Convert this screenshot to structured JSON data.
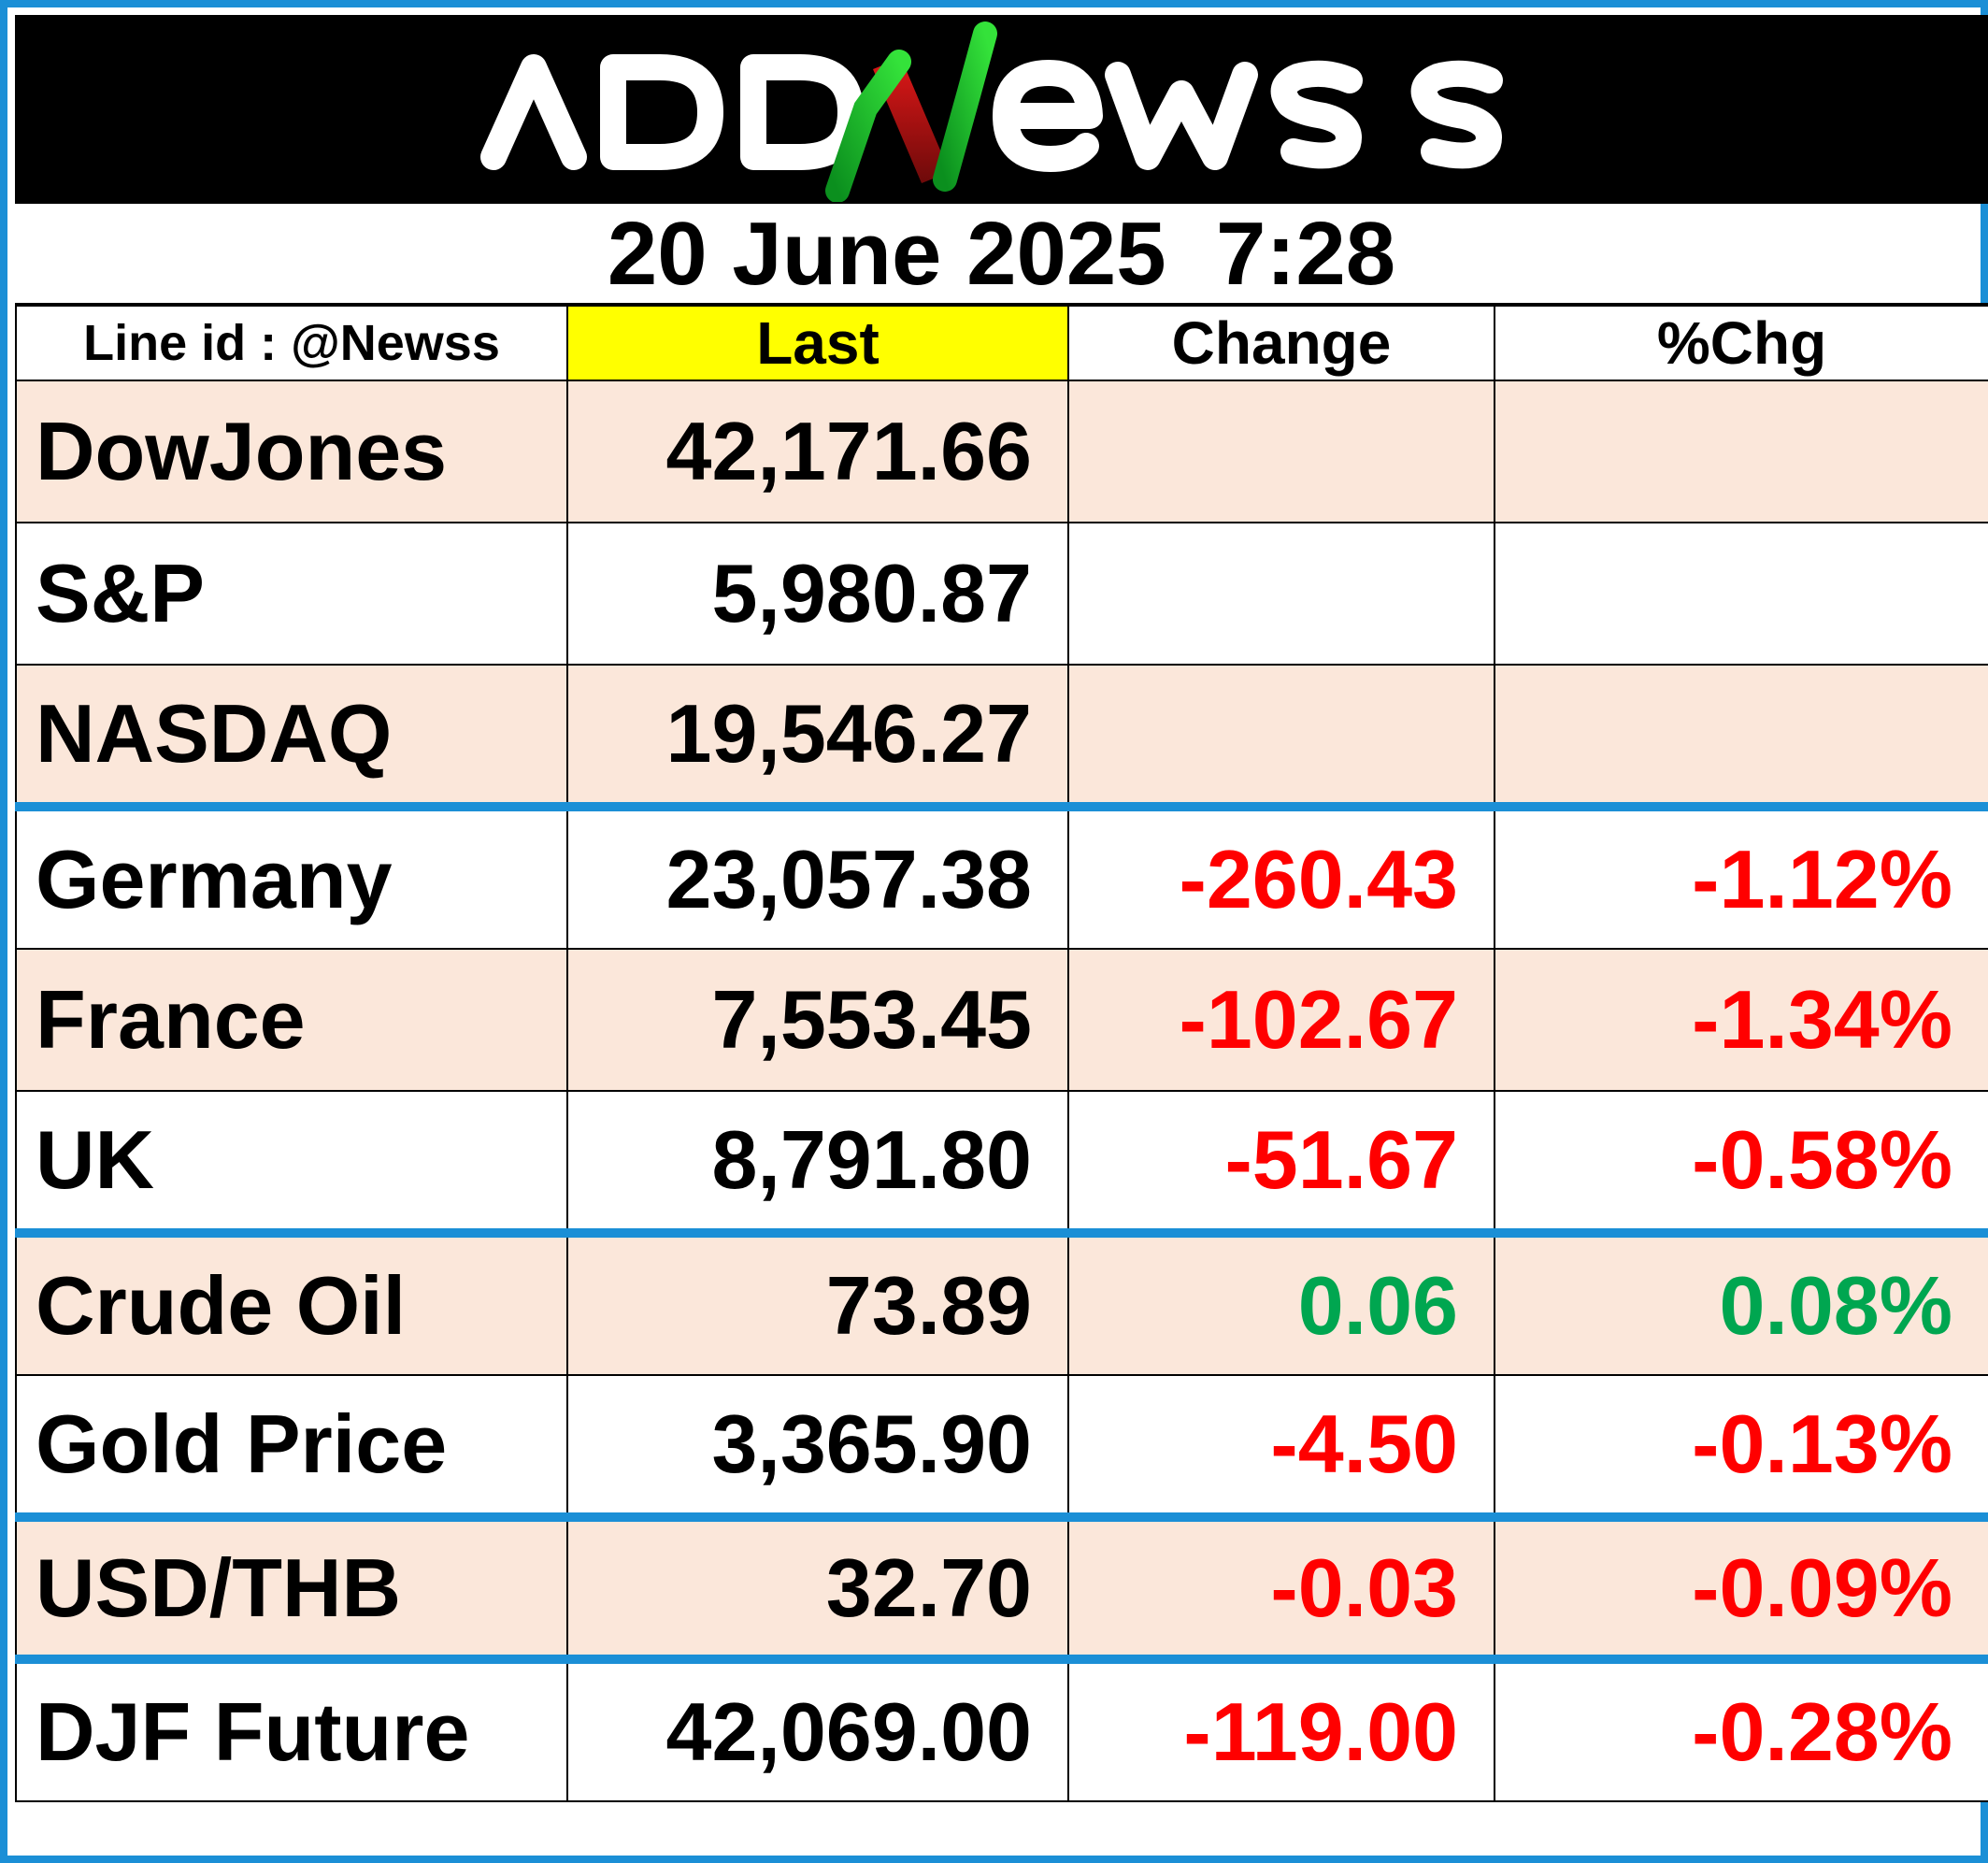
{
  "brand": {
    "logo_text": "ADDNewss",
    "colors": {
      "frame_blue": "#1b8fd6",
      "header_yellow": "#ffff00",
      "row_peach": "#fbe7da",
      "negative_red": "#ff0000",
      "positive_green": "#00a650"
    }
  },
  "date_line": "20 June 2025  7:28",
  "table": {
    "headers": {
      "line_id": "Line id : @Newss",
      "last": "Last",
      "change": "Change",
      "pct_change": "%Chg"
    },
    "rows": [
      {
        "name": "DowJones",
        "last": "42,171.66",
        "change": "",
        "pct": "",
        "direction": "none"
      },
      {
        "name": "S&P",
        "last": "5,980.87",
        "change": "",
        "pct": "",
        "direction": "none"
      },
      {
        "name": "NASDAQ",
        "last": "19,546.27",
        "change": "",
        "pct": "",
        "direction": "none"
      },
      {
        "name": "Germany",
        "last": "23,057.38",
        "change": "-260.43",
        "pct": "-1.12%",
        "direction": "down"
      },
      {
        "name": "France",
        "last": "7,553.45",
        "change": "-102.67",
        "pct": "-1.34%",
        "direction": "down"
      },
      {
        "name": "UK",
        "last": "8,791.80",
        "change": "-51.67",
        "pct": "-0.58%",
        "direction": "down"
      },
      {
        "name": "Crude Oil",
        "last": "73.89",
        "change": "0.06",
        "pct": "0.08%",
        "direction": "up"
      },
      {
        "name": "Gold Price",
        "last": "3,365.90",
        "change": "-4.50",
        "pct": "-0.13%",
        "direction": "down"
      },
      {
        "name": "USD/THB",
        "last": "32.70",
        "change": "-0.03",
        "pct": "-0.09%",
        "direction": "down"
      },
      {
        "name": "DJF Future",
        "last": "42,069.00",
        "change": "-119.00",
        "pct": "-0.28%",
        "direction": "down"
      }
    ]
  }
}
